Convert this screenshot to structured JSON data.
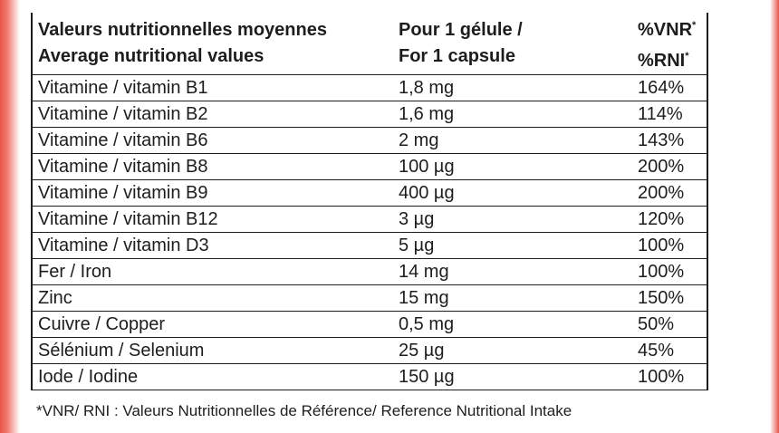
{
  "header": {
    "col1_line1": "Valeurs nutritionnelles moyennes",
    "col1_line2": "Average nutritional values",
    "col2_line1": "Pour 1 gélule /",
    "col2_line2": "For 1 capsule",
    "col3_line1": "%VNR",
    "col3_line2": "%RNI",
    "asterisk": "*"
  },
  "rows": [
    {
      "name": "Vitamine / vitamin B1",
      "amount": "1,8 mg",
      "percent": "164%"
    },
    {
      "name": "Vitamine / vitamin B2",
      "amount": "1,6 mg",
      "percent": "114%"
    },
    {
      "name": "Vitamine / vitamin B6",
      "amount": "2 mg",
      "percent": "143%"
    },
    {
      "name": "Vitamine / vitamin B8",
      "amount": "100 µg",
      "percent": "200%"
    },
    {
      "name": "Vitamine / vitamin B9",
      "amount": "400 µg",
      "percent": "200%"
    },
    {
      "name": "Vitamine / vitamin B12",
      "amount": "3 µg",
      "percent": "120%"
    },
    {
      "name": "Vitamine / vitamin D3",
      "amount": "5 µg",
      "percent": "100%"
    },
    {
      "name": "Fer / Iron",
      "amount": "14 mg",
      "percent": "100%"
    },
    {
      "name": "Zinc",
      "amount": "15 mg",
      "percent": "150%"
    },
    {
      "name": "Cuivre / Copper",
      "amount": "0,5 mg",
      "percent": "50%"
    },
    {
      "name": "Sélénium / Selenium",
      "amount": "25 µg",
      "percent": "45%"
    },
    {
      "name": "Iode / Iodine",
      "amount": "150 µg",
      "percent": "100%"
    }
  ],
  "footnote": "*VNR/ RNI : Valeurs Nutritionnelles de Référence/ Reference Nutritional Intake",
  "colors": {
    "text": "#1d1d1b",
    "edge_accent": "#e8554a",
    "background": "#ffffff"
  }
}
